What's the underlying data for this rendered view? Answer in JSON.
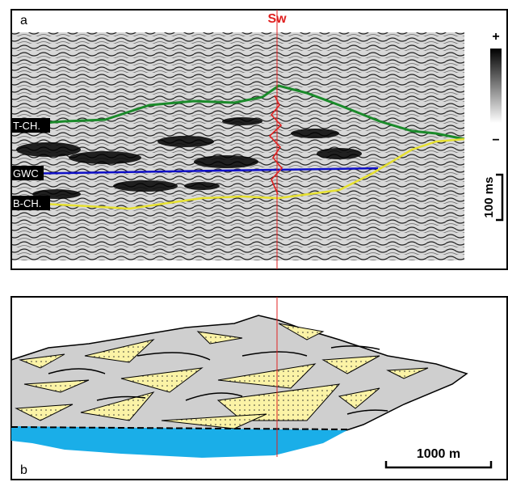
{
  "panel_a": {
    "label": "a",
    "well": "Sw",
    "color_scale": {
      "top": "+",
      "bottom": "−"
    },
    "time_scale": "100 ms",
    "horizons": [
      "T-CH.",
      "GWC",
      "B-CH."
    ]
  },
  "panel_b": {
    "label": "b",
    "length_scale": "1000 m"
  }
}
